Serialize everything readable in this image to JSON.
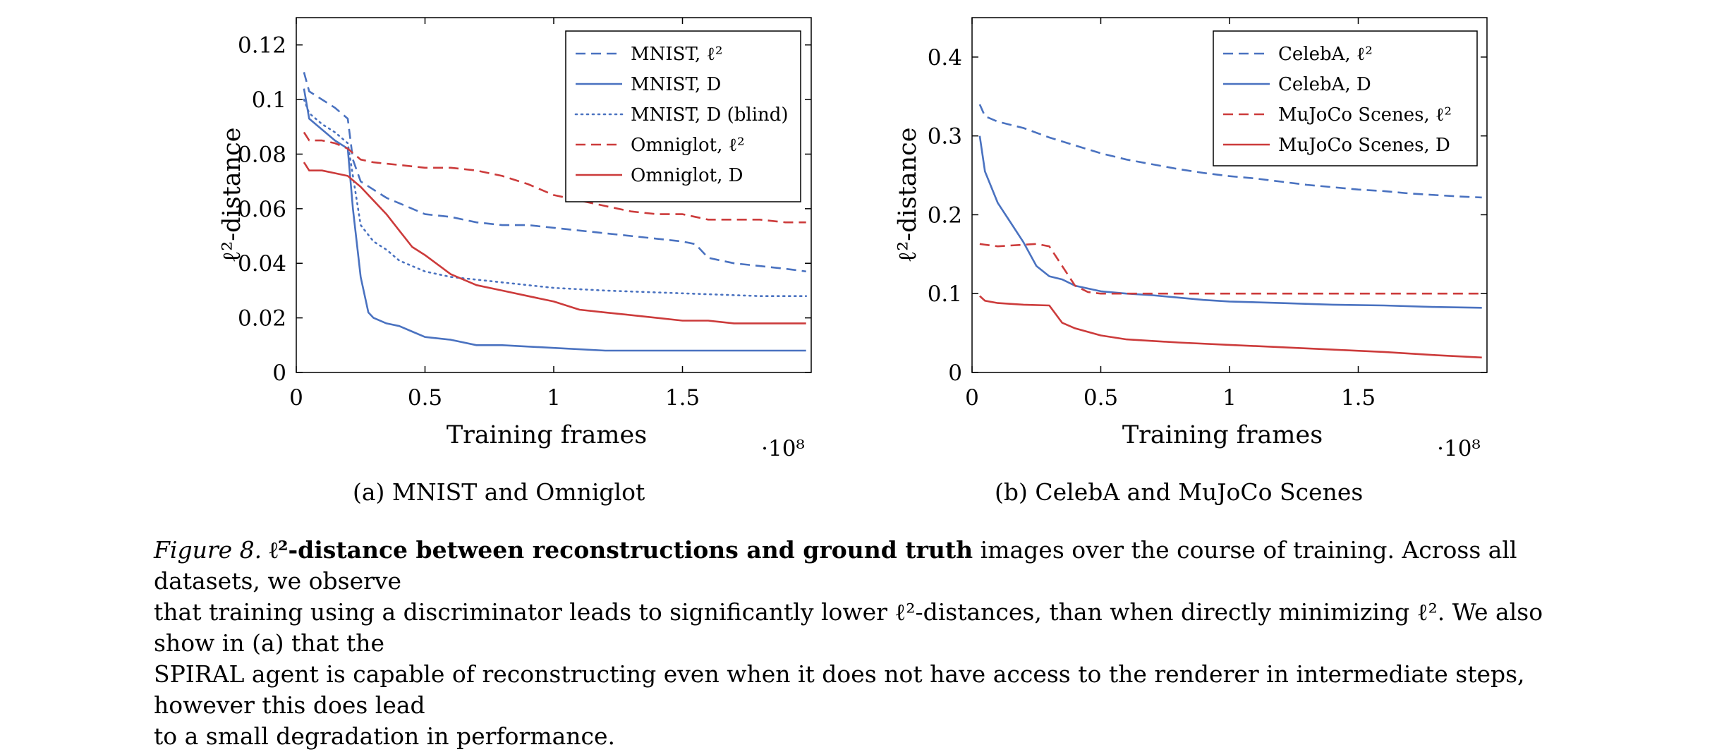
{
  "figure": {
    "label": "Figure 8.",
    "title_bold": "ℓ²-distance between reconstructions and ground truth",
    "caption_lines": [
      "images over the course of training. Across all datasets, we observe",
      "that training using a discriminator leads to significantly lower ℓ²-distances, than when directly minimizing ℓ². We also show in (a) that the",
      "SPIRAL agent is capable of reconstructing even when it does not have access to the renderer in intermediate steps, however this does lead",
      "to a small degradation in performance."
    ]
  },
  "chart_data": [
    {
      "id": "a",
      "type": "line",
      "caption": "(a) MNIST and Omniglot",
      "xlabel": "Training frames",
      "x_multiplier": "·10⁸",
      "ylabel": "ℓ²-distance",
      "xlim": [
        0,
        2.0
      ],
      "ylim": [
        0,
        0.13
      ],
      "xticks": [
        0,
        0.5,
        1,
        1.5
      ],
      "xtick_labels": [
        "0",
        "0.5",
        "1",
        "1.5"
      ],
      "yticks": [
        0,
        0.02,
        0.04,
        0.06,
        0.08,
        0.1,
        0.12
      ],
      "ytick_labels": [
        "0",
        "0.02",
        "0.04",
        "0.06",
        "0.08",
        "0.1",
        "0.12"
      ],
      "grid": false,
      "legend_position": "top-right",
      "series": [
        {
          "name": "MNIST, ℓ²",
          "color": "#4a72c0",
          "dash": "dashed",
          "x": [
            0.03,
            0.05,
            0.1,
            0.15,
            0.2,
            0.22,
            0.25,
            0.3,
            0.35,
            0.4,
            0.5,
            0.6,
            0.7,
            0.8,
            0.9,
            1.0,
            1.1,
            1.2,
            1.3,
            1.4,
            1.5,
            1.55,
            1.6,
            1.7,
            1.8,
            1.9,
            1.98
          ],
          "y": [
            0.11,
            0.103,
            0.1,
            0.097,
            0.093,
            0.078,
            0.07,
            0.067,
            0.064,
            0.062,
            0.058,
            0.057,
            0.055,
            0.054,
            0.054,
            0.053,
            0.052,
            0.051,
            0.05,
            0.049,
            0.048,
            0.047,
            0.042,
            0.04,
            0.039,
            0.038,
            0.037
          ]
        },
        {
          "name": "MNIST, D",
          "color": "#4a72c0",
          "dash": "solid",
          "x": [
            0.03,
            0.05,
            0.1,
            0.15,
            0.2,
            0.22,
            0.25,
            0.28,
            0.3,
            0.35,
            0.4,
            0.45,
            0.5,
            0.6,
            0.7,
            0.8,
            1.0,
            1.2,
            1.5,
            1.8,
            1.98
          ],
          "y": [
            0.104,
            0.093,
            0.089,
            0.085,
            0.082,
            0.06,
            0.035,
            0.022,
            0.02,
            0.018,
            0.017,
            0.015,
            0.013,
            0.012,
            0.01,
            0.01,
            0.009,
            0.008,
            0.008,
            0.008,
            0.008
          ]
        },
        {
          "name": "MNIST, D (blind)",
          "color": "#4a72c0",
          "dash": "dotted",
          "x": [
            0.03,
            0.05,
            0.1,
            0.15,
            0.2,
            0.22,
            0.25,
            0.3,
            0.35,
            0.4,
            0.45,
            0.5,
            0.6,
            0.7,
            0.8,
            1.0,
            1.2,
            1.5,
            1.8,
            1.98
          ],
          "y": [
            0.1,
            0.095,
            0.091,
            0.088,
            0.084,
            0.072,
            0.054,
            0.048,
            0.045,
            0.041,
            0.039,
            0.037,
            0.035,
            0.034,
            0.033,
            0.031,
            0.03,
            0.029,
            0.028,
            0.028
          ]
        },
        {
          "name": "Omniglot, ℓ²",
          "color": "#cc3b3b",
          "dash": "dashed",
          "x": [
            0.03,
            0.05,
            0.1,
            0.15,
            0.2,
            0.25,
            0.3,
            0.4,
            0.5,
            0.6,
            0.7,
            0.8,
            0.9,
            1.0,
            1.1,
            1.2,
            1.3,
            1.4,
            1.5,
            1.6,
            1.7,
            1.8,
            1.9,
            1.98
          ],
          "y": [
            0.088,
            0.085,
            0.085,
            0.084,
            0.082,
            0.078,
            0.077,
            0.076,
            0.075,
            0.075,
            0.074,
            0.072,
            0.069,
            0.065,
            0.063,
            0.061,
            0.059,
            0.058,
            0.058,
            0.056,
            0.056,
            0.056,
            0.055,
            0.055
          ]
        },
        {
          "name": "Omniglot, D",
          "color": "#cc3b3b",
          "dash": "solid",
          "x": [
            0.03,
            0.05,
            0.1,
            0.15,
            0.2,
            0.25,
            0.3,
            0.35,
            0.4,
            0.45,
            0.5,
            0.6,
            0.7,
            0.8,
            0.9,
            1.0,
            1.1,
            1.2,
            1.3,
            1.4,
            1.5,
            1.6,
            1.7,
            1.8,
            1.9,
            1.98
          ],
          "y": [
            0.077,
            0.074,
            0.074,
            0.073,
            0.072,
            0.068,
            0.063,
            0.058,
            0.052,
            0.046,
            0.043,
            0.036,
            0.032,
            0.03,
            0.028,
            0.026,
            0.023,
            0.022,
            0.021,
            0.02,
            0.019,
            0.019,
            0.018,
            0.018,
            0.018,
            0.018
          ]
        }
      ]
    },
    {
      "id": "b",
      "type": "line",
      "caption": "(b) CelebA and MuJoCo Scenes",
      "xlabel": "Training frames",
      "x_multiplier": "·10⁸",
      "ylabel": "ℓ²-distance",
      "xlim": [
        0,
        2.0
      ],
      "ylim": [
        0,
        0.45
      ],
      "xticks": [
        0,
        0.5,
        1,
        1.5
      ],
      "xtick_labels": [
        "0",
        "0.5",
        "1",
        "1.5"
      ],
      "yticks": [
        0,
        0.1,
        0.2,
        0.3,
        0.4
      ],
      "ytick_labels": [
        "0",
        "0.1",
        "0.2",
        "0.3",
        "0.4"
      ],
      "grid": false,
      "legend_position": "top-right",
      "series": [
        {
          "name": "CelebA, ℓ²",
          "color": "#4a72c0",
          "dash": "dashed",
          "x": [
            0.03,
            0.05,
            0.1,
            0.15,
            0.2,
            0.3,
            0.4,
            0.5,
            0.6,
            0.7,
            0.8,
            0.9,
            1.0,
            1.1,
            1.2,
            1.3,
            1.4,
            1.5,
            1.6,
            1.7,
            1.8,
            1.9,
            1.98
          ],
          "y": [
            0.34,
            0.325,
            0.318,
            0.314,
            0.31,
            0.298,
            0.288,
            0.278,
            0.27,
            0.264,
            0.258,
            0.253,
            0.249,
            0.246,
            0.242,
            0.238,
            0.235,
            0.232,
            0.23,
            0.227,
            0.225,
            0.223,
            0.222
          ]
        },
        {
          "name": "CelebA, D",
          "color": "#4a72c0",
          "dash": "solid",
          "x": [
            0.03,
            0.05,
            0.1,
            0.15,
            0.2,
            0.25,
            0.3,
            0.35,
            0.4,
            0.5,
            0.6,
            0.7,
            0.8,
            0.9,
            1.0,
            1.2,
            1.4,
            1.6,
            1.8,
            1.98
          ],
          "y": [
            0.3,
            0.255,
            0.215,
            0.19,
            0.165,
            0.135,
            0.122,
            0.118,
            0.11,
            0.103,
            0.1,
            0.098,
            0.095,
            0.092,
            0.09,
            0.088,
            0.086,
            0.085,
            0.083,
            0.082
          ]
        },
        {
          "name": "MuJoCo Scenes, ℓ²",
          "color": "#cc3b3b",
          "dash": "dashed",
          "x": [
            0.03,
            0.05,
            0.1,
            0.15,
            0.2,
            0.25,
            0.3,
            0.35,
            0.4,
            0.45,
            0.5,
            0.7,
            1.0,
            1.5,
            1.98
          ],
          "y": [
            0.163,
            0.162,
            0.16,
            0.161,
            0.162,
            0.163,
            0.16,
            0.135,
            0.11,
            0.102,
            0.1,
            0.1,
            0.1,
            0.1,
            0.1
          ]
        },
        {
          "name": "MuJoCo Scenes, D",
          "color": "#cc3b3b",
          "dash": "solid",
          "x": [
            0.03,
            0.05,
            0.1,
            0.2,
            0.3,
            0.35,
            0.4,
            0.5,
            0.6,
            0.7,
            0.8,
            1.0,
            1.2,
            1.4,
            1.6,
            1.8,
            1.98
          ],
          "y": [
            0.097,
            0.091,
            0.088,
            0.086,
            0.085,
            0.063,
            0.056,
            0.047,
            0.042,
            0.04,
            0.038,
            0.035,
            0.032,
            0.029,
            0.026,
            0.022,
            0.019
          ]
        }
      ]
    }
  ]
}
